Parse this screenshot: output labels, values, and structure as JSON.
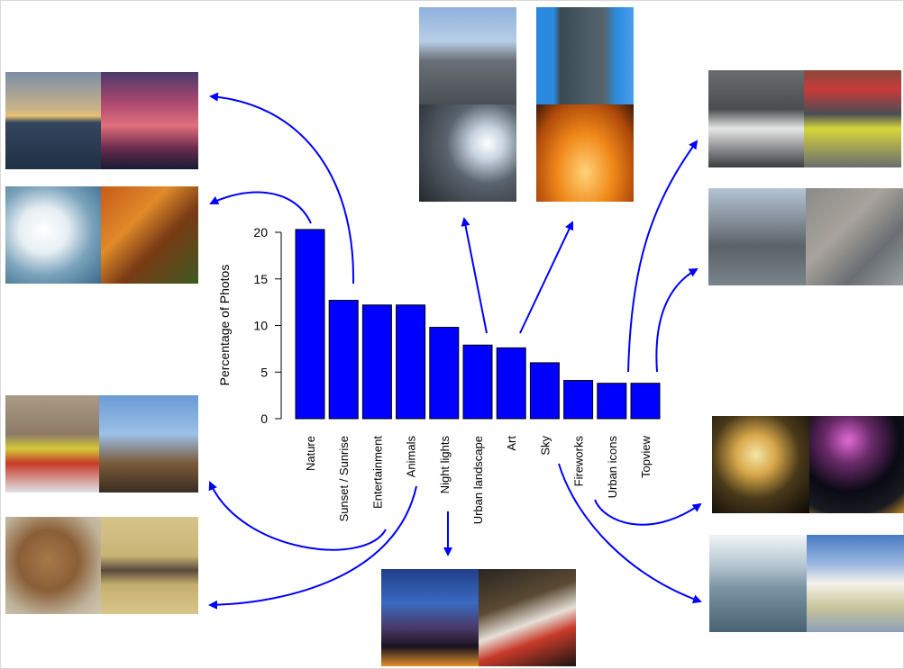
{
  "chart_data": {
    "type": "bar",
    "title": "",
    "xlabel": "",
    "ylabel": "Percentage of Photos",
    "ylim": [
      0,
      20
    ],
    "yticks": [
      "0",
      "5",
      "10",
      "15",
      "20"
    ],
    "categories": [
      "Nature",
      "Sunset / Sunrise",
      "Entertainment",
      "Animals",
      "Night lights",
      "Urban landscape",
      "Art",
      "Sky",
      "Fireworks",
      "Urban icons",
      "Topview"
    ],
    "values": [
      20.3,
      12.7,
      12.2,
      12.2,
      9.8,
      7.9,
      7.6,
      6.0,
      4.1,
      3.8,
      3.8
    ],
    "bar_color": "#0000ff",
    "arrow_color": "#0000ff",
    "grid": false
  },
  "photo_groups": [
    {
      "name": "sunset-photos",
      "category": "Sunset / Sunrise",
      "tiles": [
        "pier-sunset",
        "pink-sky-sunset"
      ]
    },
    {
      "name": "nature-photos",
      "category": "Nature",
      "tiles": [
        "wave-splash",
        "autumn-trees"
      ]
    },
    {
      "name": "entertainment-photos",
      "category": "Entertainment",
      "tiles": [
        "dragon-parade",
        "ferris-wheel"
      ]
    },
    {
      "name": "animal-photos",
      "category": "Animals",
      "tiles": [
        "camel",
        "duck"
      ]
    },
    {
      "name": "night-lights-photos",
      "category": "Night lights",
      "tiles": [
        "city-night",
        "highway-light-trails"
      ]
    },
    {
      "name": "urban-landscape-photos",
      "category": "Urban landscape",
      "tiles": [
        "skyline-rail",
        "skyscraper-sun"
      ]
    },
    {
      "name": "art-photos",
      "category": "Art",
      "tiles": [
        "wavy-tower",
        "orange-pavilion"
      ]
    },
    {
      "name": "urban-icons-photos",
      "category": "Urban icons",
      "tiles": [
        "police-robot",
        "bike-cart"
      ]
    },
    {
      "name": "topview-photos",
      "category": "Topview",
      "tiles": [
        "aerial-city",
        "aerial-rooftops"
      ]
    },
    {
      "name": "fireworks-photos",
      "category": "Fireworks",
      "tiles": [
        "gold-fireworks",
        "purple-fireworks"
      ]
    },
    {
      "name": "sky-photos",
      "category": "Sky",
      "tiles": [
        "cloud-sea",
        "cumulus-clouds"
      ]
    }
  ]
}
